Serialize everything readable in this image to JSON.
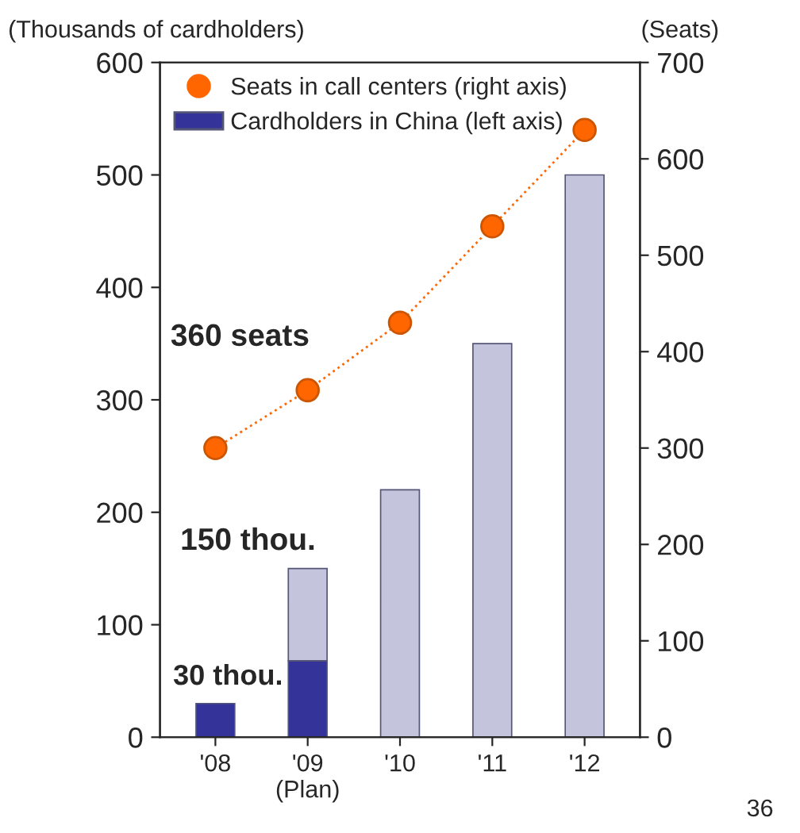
{
  "chart_data": {
    "type": "bar",
    "stacked": true,
    "categories": [
      "'08",
      "'09\n(Plan)",
      "'10",
      "'11",
      "'12"
    ],
    "series": [
      {
        "name": "Cardholders in China (left axis)",
        "color": "#333399",
        "values": [
          30,
          68,
          null,
          null,
          null
        ]
      },
      {
        "color": "#c4c4dc",
        "values": [
          null,
          82,
          220,
          350,
          500
        ]
      },
      {
        "name": "Seats in call centers (right axis)",
        "type": "line",
        "axis": "y2",
        "color": "#ff6600",
        "marker": "circle",
        "line_style": "dotted",
        "values": [
          300,
          360,
          430,
          530,
          630
        ]
      }
    ],
    "ylabel": "(Thousands of cardholders)",
    "y2label": "(Seats)",
    "ylim": [
      0,
      600
    ],
    "yticks": [
      0,
      100,
      200,
      300,
      400,
      500,
      600
    ],
    "y2lim": [
      0,
      700
    ],
    "y2ticks": [
      0,
      100,
      200,
      300,
      400,
      500,
      600,
      700
    ],
    "legend": "top left",
    "grid": false,
    "annotations": [
      "360 seats",
      "150 thou.",
      "30 thou.",
      "36"
    ]
  }
}
